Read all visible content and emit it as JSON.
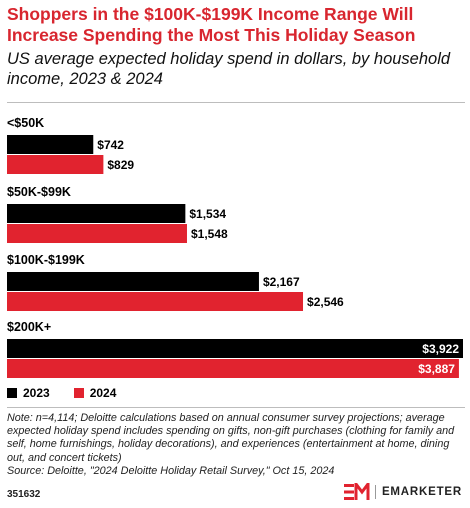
{
  "title": "Shoppers in the $100K-$199K Income Range Will Increase Spending the Most This Holiday Season",
  "subtitle": "US average expected holiday spend in dollars, by household income, 2023 & 2024",
  "colors": {
    "series_2023": "#000000",
    "series_2024": "#e1232f",
    "accent": "#d8262f"
  },
  "chart_data": {
    "type": "bar",
    "orientation": "horizontal",
    "categories": [
      "<$50K",
      "$50K-$99K",
      "$100K-$199K",
      "$200K+"
    ],
    "series": [
      {
        "name": "2023",
        "values": [
          742,
          1534,
          2167,
          3922
        ],
        "labels": [
          "$742",
          "$1,534",
          "$2,167",
          "$3,922"
        ]
      },
      {
        "name": "2024",
        "values": [
          829,
          1548,
          2546,
          3887
        ],
        "labels": [
          "$829",
          "$1,548",
          "$2,546",
          "$3,887"
        ]
      }
    ],
    "xlim": [
      0,
      3922
    ],
    "grid": false,
    "legend": "bottom-left"
  },
  "note": "Note: n=4,114; Deloitte calculations based on annual consumer survey projections; average expected holiday spend includes spending on gifts, non-gift purchases (clothing for family and self, home furnishings, holiday decorations), and experiences (entertainment at home, dining out, and concert tickets)",
  "source": "Source: Deloitte, \"2024 Deloitte Holiday Retail Survey,\" Oct 15, 2024",
  "chart_id": "351632",
  "brand": "EMARKETER"
}
